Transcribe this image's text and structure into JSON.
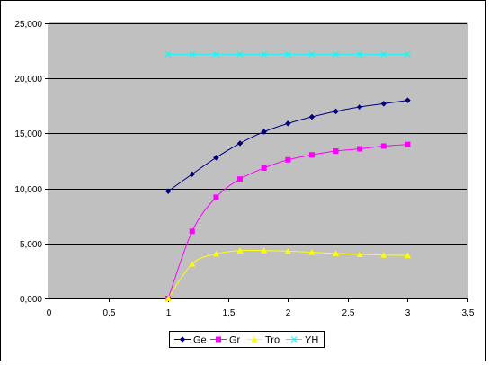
{
  "chart_data": {
    "type": "line",
    "title": "",
    "xlabel": "",
    "ylabel": "",
    "xlim": [
      0,
      3.5
    ],
    "ylim": [
      0,
      25
    ],
    "x_ticks": [
      0,
      0.5,
      1,
      1.5,
      2,
      2.5,
      3,
      3.5
    ],
    "x_tick_labels": [
      "0",
      "0,5",
      "1",
      "1,5",
      "2",
      "2,5",
      "3",
      "3,5"
    ],
    "y_ticks": [
      0,
      5,
      10,
      15,
      20,
      25
    ],
    "y_tick_labels": [
      "0,000",
      "5,000",
      "10,000",
      "15,000",
      "20,000",
      "25,000"
    ],
    "grid": "horizontal",
    "plot_background": "#C0C0C0",
    "legend_position": "bottom",
    "x": [
      1,
      1.2,
      1.4,
      1.6,
      1.8,
      2,
      2.2,
      2.4,
      2.6,
      2.8,
      3
    ],
    "series": [
      {
        "name": "Ge",
        "color": "#000080",
        "marker": "diamond",
        "values": [
          9.75,
          11.3,
          12.8,
          14.1,
          15.15,
          15.9,
          16.5,
          17.0,
          17.4,
          17.7,
          18.0
        ]
      },
      {
        "name": "Gr",
        "color": "#FF00FF",
        "marker": "square",
        "values": [
          0.0,
          6.1,
          9.2,
          10.85,
          11.85,
          12.6,
          13.05,
          13.4,
          13.6,
          13.85,
          14.0
        ]
      },
      {
        "name": "Tro",
        "color": "#FFFF00",
        "marker": "triangle",
        "values": [
          0.0,
          3.15,
          4.05,
          4.35,
          4.35,
          4.3,
          4.2,
          4.1,
          4.0,
          3.95,
          3.9
        ]
      },
      {
        "name": "YH",
        "color": "#00FFFF",
        "marker": "x",
        "values": [
          22.2,
          22.2,
          22.2,
          22.2,
          22.2,
          22.2,
          22.2,
          22.2,
          22.2,
          22.2,
          22.2
        ]
      }
    ]
  }
}
